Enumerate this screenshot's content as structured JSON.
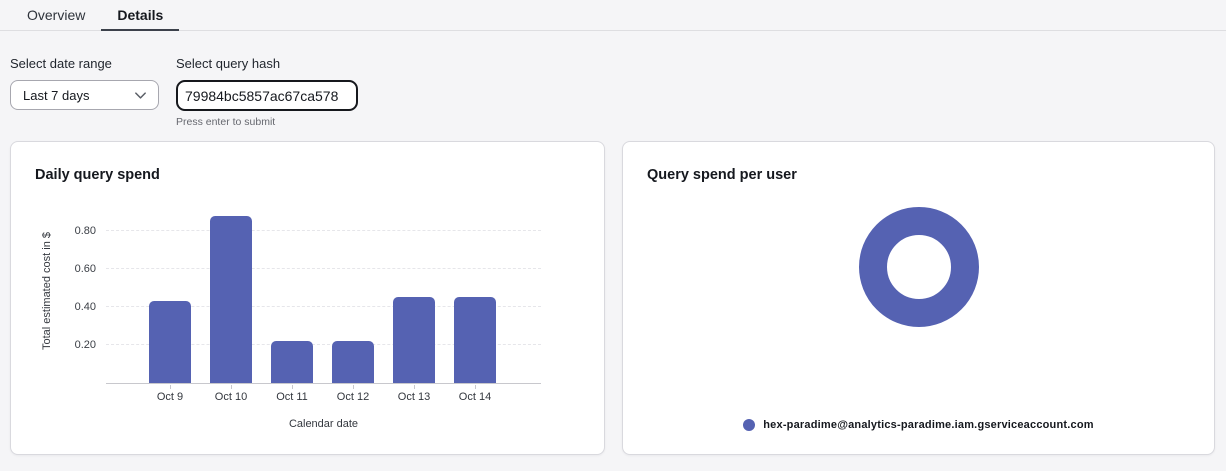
{
  "page": {
    "background": "#F5F5F7"
  },
  "colors": {
    "accent": "#5562B2"
  },
  "tabs": [
    {
      "label": "Overview",
      "active": false
    },
    {
      "label": "Details",
      "active": true
    }
  ],
  "filters": {
    "date_range": {
      "label": "Select date range",
      "value": "Last 7 days"
    },
    "query_hash": {
      "label": "Select query hash",
      "value": "79984bc5857ac67ca578",
      "helper": "Press enter to submit"
    }
  },
  "chart_data": [
    {
      "type": "bar",
      "title": "Daily query spend",
      "categories": [
        "Oct 9",
        "Oct 10",
        "Oct 11",
        "Oct 12",
        "Oct 13",
        "Oct 14"
      ],
      "values": [
        0.43,
        0.88,
        0.22,
        0.22,
        0.45,
        0.45
      ],
      "xlabel": "Calendar date",
      "ylabel": "Total estimated cost in $",
      "ylim": [
        0,
        0.95
      ],
      "yticks": [
        0.2,
        0.4,
        0.6,
        0.8
      ],
      "grid": true,
      "bar_color": "#5562B2"
    },
    {
      "type": "pie",
      "donut": true,
      "title": "Query spend per user",
      "labels": [
        "hex-paradime@analytics-paradime.iam.gserviceaccount.com"
      ],
      "values": [
        100
      ],
      "legend_position": "bottom",
      "color": "#5562B2"
    }
  ]
}
